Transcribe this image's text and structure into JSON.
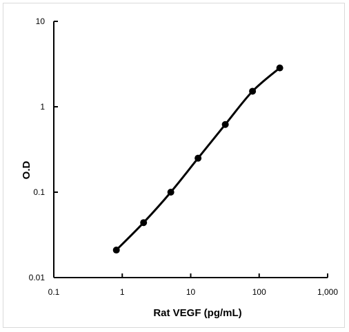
{
  "chart_data": {
    "type": "line",
    "title": "",
    "xlabel": "Rat VEGF (pg/mL)",
    "ylabel": "O.D",
    "x_scale": "log",
    "y_scale": "log",
    "xlim": [
      0.1,
      1000
    ],
    "ylim": [
      0.01,
      10
    ],
    "x_ticks": [
      0.1,
      1,
      10,
      100,
      1000
    ],
    "x_tick_labels": [
      "0.1",
      "1",
      "10",
      "100",
      "1,000"
    ],
    "y_ticks": [
      0.01,
      0.1,
      1,
      10
    ],
    "y_tick_labels": [
      "0.01",
      "0.1",
      "1",
      "10"
    ],
    "grid": false,
    "legend": "none",
    "series": [
      {
        "x": [
          0.82,
          2.05,
          5.12,
          12.8,
          32,
          80,
          200
        ],
        "y": [
          0.021,
          0.044,
          0.1,
          0.25,
          0.62,
          1.52,
          2.85
        ],
        "color": "#000000",
        "marker": "circle"
      }
    ]
  }
}
